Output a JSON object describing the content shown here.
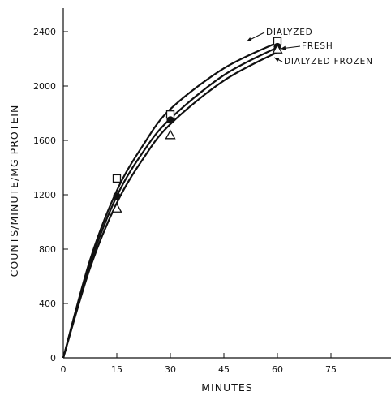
{
  "chart_data": {
    "type": "scatter",
    "title": "",
    "xlabel": "MINUTES",
    "ylabel": "COUNTS/MINUTE/MG PROTEIN",
    "xlim": [
      0,
      90
    ],
    "ylim": [
      0,
      2600
    ],
    "x_ticks": [
      0,
      15,
      30,
      45,
      60,
      75
    ],
    "y_ticks": [
      0,
      400,
      800,
      1200,
      1600,
      2000,
      2400
    ],
    "grid": false,
    "legend": "none",
    "series": [
      {
        "name": "DIALYZED",
        "marker": "open-square",
        "points": [
          {
            "x": 0,
            "y": 0
          },
          {
            "x": 15,
            "y": 1320
          },
          {
            "x": 30,
            "y": 1790
          },
          {
            "x": 60,
            "y": 2330
          }
        ],
        "curve": [
          {
            "x": 0,
            "y": 0
          },
          {
            "x": 7.5,
            "y": 720
          },
          {
            "x": 15,
            "y": 1230
          },
          {
            "x": 22.5,
            "y": 1570
          },
          {
            "x": 30,
            "y": 1830
          },
          {
            "x": 45,
            "y": 2130
          },
          {
            "x": 60,
            "y": 2320
          }
        ]
      },
      {
        "name": "FRESH",
        "marker": "filled-circle",
        "points": [
          {
            "x": 0,
            "y": 0
          },
          {
            "x": 15,
            "y": 1190
          },
          {
            "x": 30,
            "y": 1750
          },
          {
            "x": 60,
            "y": 2290
          }
        ],
        "curve": [
          {
            "x": 0,
            "y": 0
          },
          {
            "x": 7.5,
            "y": 690
          },
          {
            "x": 15,
            "y": 1190
          },
          {
            "x": 22.5,
            "y": 1520
          },
          {
            "x": 30,
            "y": 1760
          },
          {
            "x": 45,
            "y": 2080
          },
          {
            "x": 60,
            "y": 2285
          }
        ]
      },
      {
        "name": "DIALYZED FROZEN",
        "marker": "open-triangle",
        "points": [
          {
            "x": 0,
            "y": 0
          },
          {
            "x": 15,
            "y": 1100
          },
          {
            "x": 30,
            "y": 1640
          },
          {
            "x": 60,
            "y": 2270
          }
        ],
        "curve": [
          {
            "x": 0,
            "y": 0
          },
          {
            "x": 7.5,
            "y": 660
          },
          {
            "x": 15,
            "y": 1140
          },
          {
            "x": 22.5,
            "y": 1470
          },
          {
            "x": 30,
            "y": 1720
          },
          {
            "x": 45,
            "y": 2040
          },
          {
            "x": 60,
            "y": 2250
          }
        ]
      }
    ]
  }
}
